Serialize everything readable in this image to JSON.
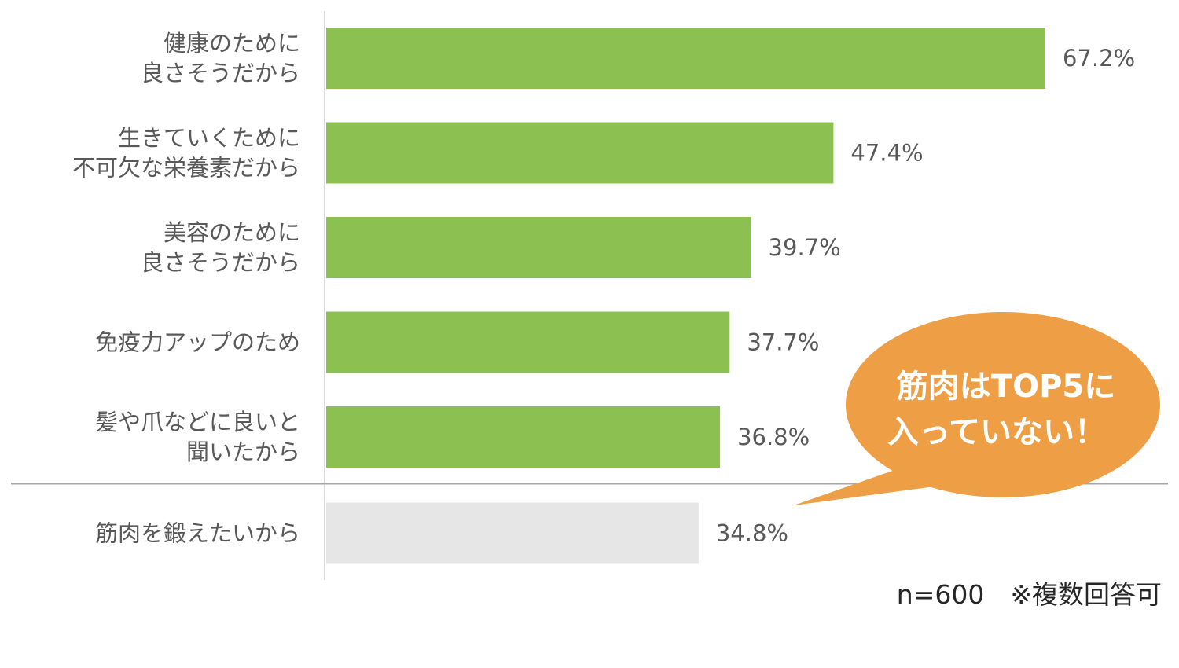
{
  "chart_data": {
    "type": "bar",
    "orientation": "horizontal",
    "categories": [
      [
        "健康のために",
        "良さそうだから"
      ],
      [
        "生きていくために",
        "不可欠な栄養素だから"
      ],
      [
        "美容のために",
        "良さそうだから"
      ],
      [
        "免疫力アップのため"
      ],
      [
        "髪や爪などに良いと",
        "聞いたから"
      ],
      [
        "筋肉を鍛えたいから"
      ]
    ],
    "values": [
      67.2,
      47.4,
      39.7,
      37.7,
      36.8,
      34.8
    ],
    "value_labels": [
      "67.2%",
      "47.4%",
      "39.7%",
      "37.7%",
      "36.8%",
      "34.8%"
    ],
    "highlighted_count": 5,
    "separator_after_index": 4,
    "xlim": [
      0,
      70
    ],
    "grid": false,
    "colors": {
      "highlight_bar": "#8CC152",
      "other_bar": "#E6E6E6",
      "axis": "#D9D9D9",
      "separator": "#A6A6A6",
      "callout": "#EE9F45"
    },
    "note": "n=600　※複数回答可",
    "callout": {
      "lines": [
        "筋肉はTOP5に",
        "入っていない！"
      ]
    }
  }
}
